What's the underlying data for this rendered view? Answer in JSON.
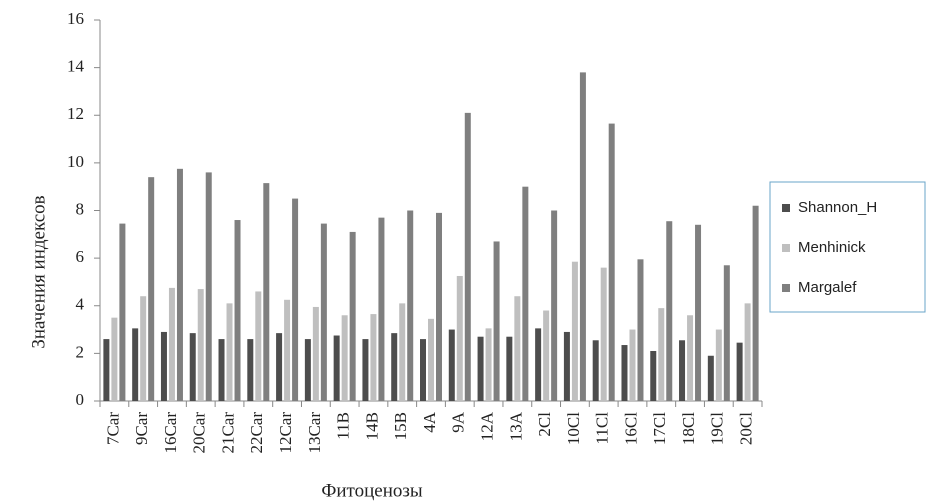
{
  "chart_data": {
    "type": "bar",
    "x_label": "Фитоценозы",
    "y_label": "Значения индексов",
    "categories": [
      "7Car",
      "9Car",
      "16Car",
      "20Car",
      "21Car",
      "22Car",
      "12Car",
      "13Car",
      "11B",
      "14B",
      "15B",
      "4A",
      "9A",
      "12A",
      "13A",
      "2Cl",
      "10Cl",
      "11Cl",
      "16Cl",
      "17Cl",
      "18Cl",
      "19Cl",
      "20Cl"
    ],
    "series": [
      {
        "name": "Shannon_H",
        "color": "#4d4d4d",
        "values": [
          2.6,
          3.05,
          2.9,
          2.85,
          2.6,
          2.6,
          2.85,
          2.6,
          2.75,
          2.6,
          2.85,
          2.6,
          3.0,
          2.7,
          2.7,
          3.05,
          2.9,
          2.55,
          2.35,
          2.1,
          2.55,
          1.9,
          2.45
        ]
      },
      {
        "name": "Menhinick",
        "color": "#bfbfbf",
        "values": [
          3.5,
          4.4,
          4.75,
          4.7,
          4.1,
          4.6,
          4.25,
          3.95,
          3.6,
          3.65,
          4.1,
          3.45,
          5.25,
          3.05,
          4.4,
          3.8,
          5.85,
          5.6,
          3.0,
          3.9,
          3.6,
          3.0,
          4.1
        ]
      },
      {
        "name": "Margalef",
        "color": "#7f7f7f",
        "values": [
          7.45,
          9.4,
          9.75,
          9.6,
          7.6,
          9.15,
          8.5,
          7.45,
          7.1,
          7.7,
          8.0,
          7.9,
          12.1,
          6.7,
          9.0,
          8.0,
          13.8,
          11.65,
          5.95,
          7.55,
          7.4,
          5.7,
          8.2
        ]
      }
    ],
    "ylim": [
      0,
      16
    ],
    "yticks": [
      0,
      2,
      4,
      6,
      8,
      10,
      12,
      14,
      16
    ],
    "grid": false,
    "legend": "right"
  }
}
